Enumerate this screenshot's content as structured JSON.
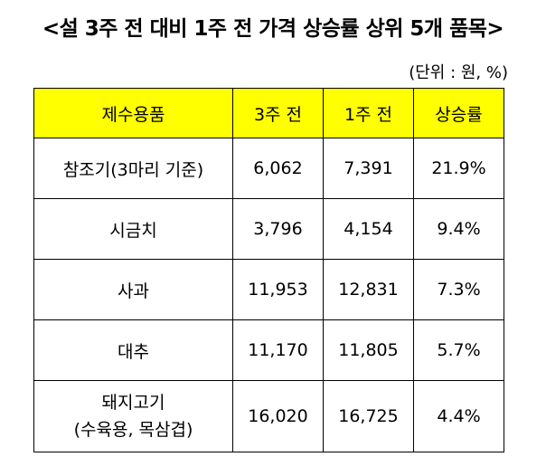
{
  "title": "<설 3주 전 대비 1주 전 가격 상승률 상위 5개 품목>",
  "unit": "(단위 : 원, %)",
  "table": {
    "headers": [
      "제수용품",
      "3주 전",
      "1주 전",
      "상승률"
    ],
    "rows": [
      {
        "item": "참조기(3마리 기준)",
        "three_weeks_ago": "6,062",
        "one_week_ago": "7,391",
        "rate": "21.9%"
      },
      {
        "item": "시금치",
        "three_weeks_ago": "3,796",
        "one_week_ago": "4,154",
        "rate": "9.4%"
      },
      {
        "item": "사과",
        "three_weeks_ago": "11,953",
        "one_week_ago": "12,831",
        "rate": "7.3%"
      },
      {
        "item": "대추",
        "three_weeks_ago": "11,170",
        "one_week_ago": "11,805",
        "rate": "5.7%"
      },
      {
        "item": "돼지고기",
        "item_detail": "(수육용, 목삼겹)",
        "three_weeks_ago": "16,020",
        "one_week_ago": "16,725",
        "rate": "4.4%"
      }
    ]
  }
}
